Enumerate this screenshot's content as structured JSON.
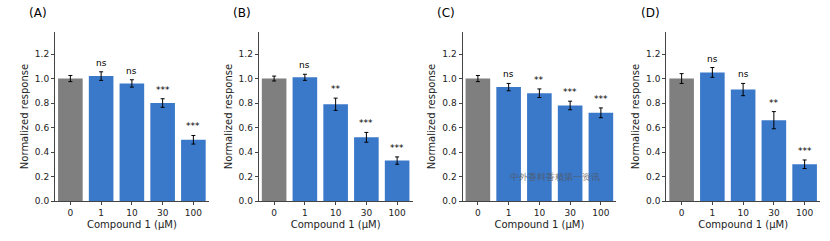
{
  "chart_data": [
    {
      "type": "bar",
      "title": "(A)",
      "xlabel": "Compound 1 (μM)",
      "ylabel": "Normalized response",
      "categories": [
        "0",
        "1",
        "10",
        "30",
        "100"
      ],
      "values": [
        1.0,
        1.02,
        0.96,
        0.8,
        0.5
      ],
      "errors": [
        0.025,
        0.035,
        0.03,
        0.035,
        0.035
      ],
      "colors": [
        "#7f7f7f",
        "#3a78c9",
        "#3a78c9",
        "#3a78c9",
        "#3a78c9"
      ],
      "annotations": [
        {
          "x": "1",
          "text": "ns"
        },
        {
          "x": "10",
          "text": "ns"
        },
        {
          "x": "30",
          "text": "***"
        },
        {
          "x": "100",
          "text": "***"
        }
      ],
      "ylim": [
        0.0,
        1.38
      ],
      "yticks": [
        {
          "value": 0.0,
          "label": "0.0"
        },
        0.2,
        0.4,
        0.6,
        0.8,
        {
          "value": 1.0,
          "label": "1.0"
        },
        1.2
      ],
      "grid": false
    },
    {
      "type": "bar",
      "title": "(B)",
      "xlabel": "Compound 1 (μM)",
      "ylabel": "Normalized response",
      "categories": [
        "0",
        "1",
        "10",
        "30",
        "100"
      ],
      "values": [
        1.0,
        1.01,
        0.79,
        0.52,
        0.33
      ],
      "errors": [
        0.02,
        0.025,
        0.05,
        0.04,
        0.03
      ],
      "colors": [
        "#7f7f7f",
        "#3a78c9",
        "#3a78c9",
        "#3a78c9",
        "#3a78c9"
      ],
      "annotations": [
        {
          "x": "1",
          "text": "ns"
        },
        {
          "x": "10",
          "text": "**"
        },
        {
          "x": "30",
          "text": "***"
        },
        {
          "x": "100",
          "text": "***"
        }
      ],
      "ylim": [
        0.0,
        1.38
      ],
      "yticks": [
        {
          "value": 0.0,
          "label": "0.0"
        },
        0.2,
        0.4,
        0.6,
        0.8,
        {
          "value": 1.0,
          "label": "1.0"
        },
        1.2
      ],
      "grid": false
    },
    {
      "type": "bar",
      "title": "(C)",
      "xlabel": "Compound 1 (μM)",
      "ylabel": "Normalized response",
      "categories": [
        "0",
        "1",
        "10",
        "30",
        "100"
      ],
      "values": [
        1.0,
        0.93,
        0.88,
        0.78,
        0.72
      ],
      "errors": [
        0.025,
        0.03,
        0.035,
        0.035,
        0.04
      ],
      "colors": [
        "#7f7f7f",
        "#3a78c9",
        "#3a78c9",
        "#3a78c9",
        "#3a78c9"
      ],
      "annotations": [
        {
          "x": "1",
          "text": "ns"
        },
        {
          "x": "10",
          "text": "**"
        },
        {
          "x": "30",
          "text": "***"
        },
        {
          "x": "100",
          "text": "***"
        },
        {
          "text": "中外香料香精第一资讯"
        }
      ],
      "ylim": [
        0.0,
        1.38
      ],
      "yticks": [
        {
          "value": 0.0,
          "label": "0.0"
        },
        0.2,
        0.4,
        0.6,
        0.8,
        {
          "value": 1.0,
          "label": "1.0"
        },
        1.2
      ],
      "grid": false
    },
    {
      "type": "bar",
      "title": "(D)",
      "xlabel": "Compound 1 (μM)",
      "ylabel": "Normalized response",
      "categories": [
        "0",
        "1",
        "10",
        "30",
        "100"
      ],
      "values": [
        1.0,
        1.05,
        0.91,
        0.66,
        0.3
      ],
      "errors": [
        0.04,
        0.04,
        0.05,
        0.07,
        0.035
      ],
      "colors": [
        "#7f7f7f",
        "#3a78c9",
        "#3a78c9",
        "#3a78c9",
        "#3a78c9"
      ],
      "annotations": [
        {
          "x": "1",
          "text": "ns"
        },
        {
          "x": "10",
          "text": "ns"
        },
        {
          "x": "30",
          "text": "**"
        },
        {
          "x": "100",
          "text": "***"
        }
      ],
      "ylim": [
        0.0,
        1.38
      ],
      "yticks": [
        {
          "value": 0.0,
          "label": "0.0"
        },
        0.2,
        0.4,
        0.6,
        0.8,
        {
          "value": 1.0,
          "label": "1.0"
        },
        1.2
      ],
      "grid": false
    }
  ]
}
